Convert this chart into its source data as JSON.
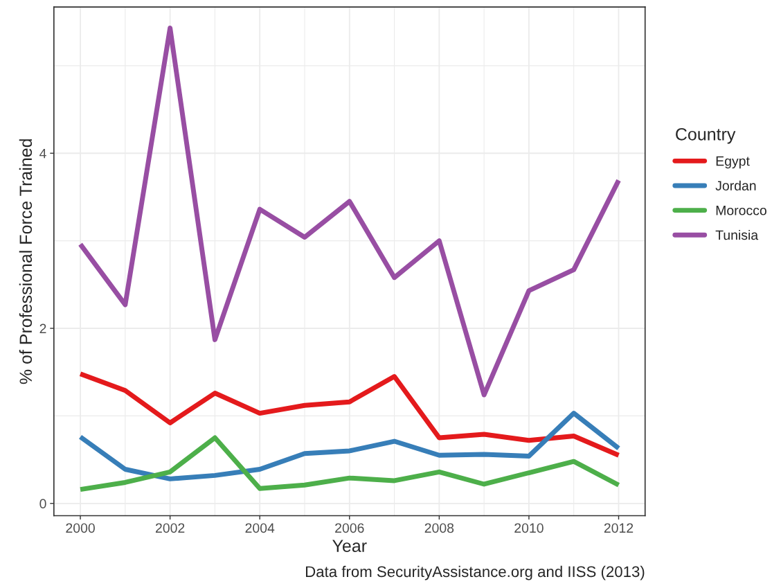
{
  "chart_data": {
    "type": "line",
    "xlabel": "Year",
    "ylabel": "% of Professional Force Trained",
    "legend_title": "Country",
    "legend": "right",
    "grid": true,
    "annotations": [
      "Data from SecurityAssistance.org and IISS (2013)"
    ],
    "x": [
      2000,
      2001,
      2002,
      2003,
      2004,
      2005,
      2006,
      2007,
      2008,
      2009,
      2010,
      2011,
      2012
    ],
    "xlim": [
      1999.41,
      2012.59
    ],
    "xticks": [
      2000,
      2002,
      2004,
      2006,
      2008,
      2010,
      2012
    ],
    "ylim": [
      -0.14,
      5.67
    ],
    "yticks": [
      0,
      2,
      4
    ],
    "series": [
      {
        "name": "Egypt",
        "color": "#e41a1c",
        "values": [
          1.48,
          1.29,
          0.92,
          1.26,
          1.03,
          1.12,
          1.16,
          1.45,
          0.75,
          0.79,
          0.72,
          0.77,
          0.55
        ]
      },
      {
        "name": "Jordan",
        "color": "#377eb8",
        "values": [
          0.76,
          0.39,
          0.28,
          0.32,
          0.39,
          0.57,
          0.6,
          0.71,
          0.55,
          0.56,
          0.54,
          1.03,
          0.63
        ]
      },
      {
        "name": "Morocco",
        "color": "#4daf4a",
        "values": [
          0.16,
          0.24,
          0.36,
          0.75,
          0.17,
          0.21,
          0.29,
          0.26,
          0.36,
          0.22,
          0.35,
          0.48,
          0.21
        ]
      },
      {
        "name": "Tunisia",
        "color": "#984ea3",
        "values": [
          2.96,
          2.27,
          5.43,
          1.87,
          3.36,
          3.04,
          3.45,
          2.58,
          3.0,
          1.24,
          2.43,
          2.67,
          3.69
        ]
      }
    ]
  }
}
